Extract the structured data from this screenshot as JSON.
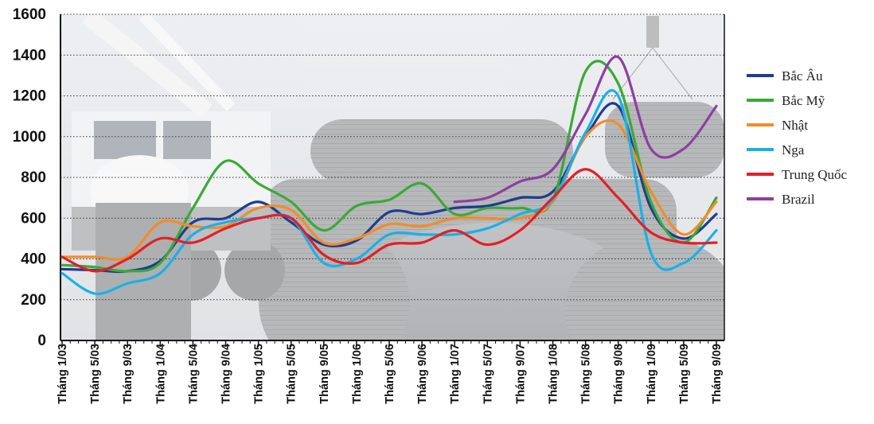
{
  "chart_data": {
    "type": "line",
    "title": "",
    "xlabel": "",
    "ylabel": "",
    "ylim": [
      0,
      1600
    ],
    "yticks": [
      0,
      200,
      400,
      600,
      800,
      1000,
      1200,
      1400,
      1600
    ],
    "grid": "horizontal dotted",
    "legend_position": "right",
    "background": "photo of steel wire-rod coils and a crane (faded)",
    "x_tick_labels": [
      "Tháng 1/03",
      "Tháng 5/03",
      "Tháng 9/03",
      "Tháng 1/04",
      "Tháng 5/04",
      "Tháng 9/04",
      "Tháng 1/05",
      "Tháng 5/05",
      "Tháng 9/05",
      "Tháng 1/06",
      "Tháng 5/06",
      "Tháng 9/06",
      "Tháng 1/07",
      "Tháng 5/07",
      "Tháng 9/07",
      "Tháng 1/08",
      "Tháng 5/08",
      "Tháng 9/08",
      "Tháng 1/09",
      "Tháng 5/09",
      "Tháng 9/09"
    ],
    "x": [
      "1/03",
      "5/03",
      "9/03",
      "1/04",
      "5/04",
      "9/04",
      "1/05",
      "5/05",
      "9/05",
      "1/06",
      "5/06",
      "9/06",
      "1/07",
      "5/07",
      "9/07",
      "1/08",
      "5/08",
      "9/08",
      "1/09",
      "5/09",
      "9/09"
    ],
    "series": [
      {
        "name": "Bắc Âu",
        "color": "#1f3c93",
        "values": [
          350,
          345,
          340,
          390,
          580,
          600,
          680,
          580,
          470,
          490,
          630,
          620,
          650,
          660,
          700,
          730,
          1000,
          1150,
          650,
          500,
          620
        ]
      },
      {
        "name": "Bắc Mỹ",
        "color": "#3aaa35",
        "values": [
          370,
          360,
          340,
          380,
          650,
          880,
          770,
          680,
          540,
          660,
          690,
          770,
          620,
          650,
          650,
          690,
          1320,
          1260,
          680,
          480,
          700
        ]
      },
      {
        "name": "Nhật",
        "color": "#f28c28",
        "values": [
          410,
          410,
          410,
          580,
          560,
          560,
          650,
          640,
          480,
          500,
          570,
          560,
          600,
          600,
          600,
          680,
          1000,
          1060,
          730,
          520,
          680
        ]
      },
      {
        "name": "Nga",
        "color": "#1ab0e8",
        "values": [
          330,
          230,
          280,
          330,
          520,
          580,
          600,
          600,
          380,
          400,
          520,
          520,
          520,
          550,
          620,
          690,
          1020,
          1200,
          430,
          380,
          540
        ]
      },
      {
        "name": "Trung Quốc",
        "color": "#e41f26",
        "values": [
          410,
          340,
          400,
          500,
          480,
          550,
          600,
          600,
          420,
          380,
          470,
          480,
          540,
          470,
          540,
          700,
          840,
          700,
          530,
          480,
          480
        ]
      },
      {
        "name": "Brazil",
        "color": "#8e3fa0",
        "values": [
          null,
          null,
          null,
          null,
          null,
          null,
          null,
          null,
          null,
          null,
          null,
          null,
          680,
          700,
          780,
          840,
          1110,
          1390,
          940,
          940,
          1150
        ]
      }
    ]
  }
}
